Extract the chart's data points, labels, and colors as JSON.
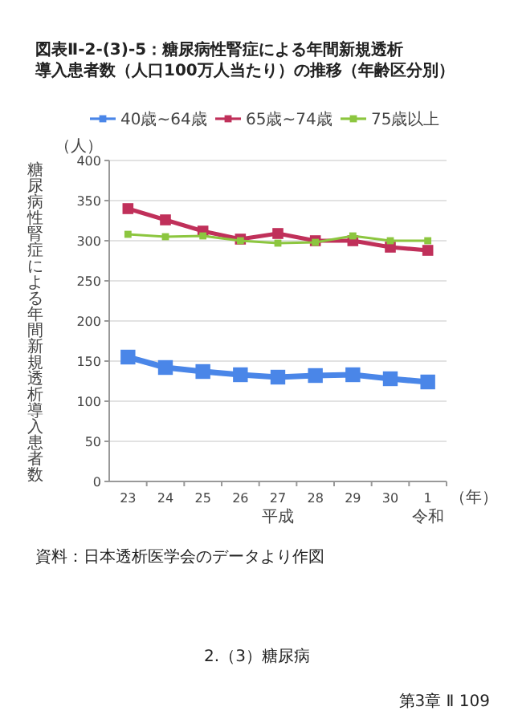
{
  "chart_data": {
    "type": "line",
    "title": "図表Ⅱ-2-(3)-5：糖尿病性腎症による年間新規透析導入患者数（人口100万人当たり）の推移（年齢区分別）",
    "ylabel": "糖尿病性腎症による年間新規透析導入患者数",
    "categories": [
      "23",
      "24",
      "25",
      "26",
      "27\n平成",
      "28",
      "29",
      "30",
      "1\n令和"
    ],
    "series": [
      {
        "name": "40歳~64歳",
        "color": "#4a86e8",
        "values": [
          155,
          142,
          137,
          133,
          130,
          132,
          133,
          128,
          124
        ]
      },
      {
        "name": "65歳~74歳",
        "color": "#c0305a",
        "values": [
          340,
          326,
          312,
          302,
          309,
          300,
          300,
          292,
          288
        ]
      },
      {
        "name": "75歳以上",
        "color": "#8cc63f",
        "values": [
          308,
          305,
          306,
          300,
          297,
          298,
          306,
          300,
          300
        ]
      }
    ],
    "ylim": [
      0,
      400
    ],
    "yticks": [
      0,
      50,
      100,
      150,
      200,
      250,
      300,
      350,
      400
    ],
    "grid": "y",
    "legend": "top",
    "marker": "square",
    "line_style": "solid",
    "annotations": [
      "（人）",
      "（年）",
      "資料：日本透析医学会のデータより作図",
      "2.（3）糖尿病",
      "第3章 Ⅱ 109"
    ]
  }
}
